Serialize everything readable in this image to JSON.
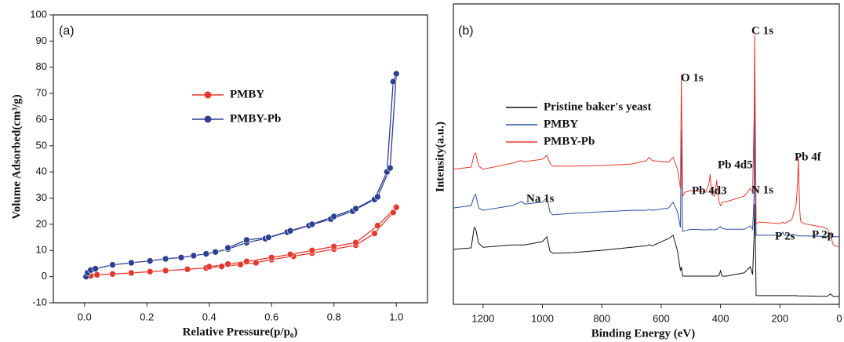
{
  "chart_data": [
    {
      "type": "line",
      "panel_label": "(a)",
      "markers": true,
      "xlabel": "Relative Pressure(p/p₀)",
      "ylabel": "Volume Adsorbed(cm³/g)",
      "xlim": [
        -0.1,
        1.1
      ],
      "ylim": [
        -10,
        100
      ],
      "xticks": [
        {
          "value": 0,
          "label": "0.0"
        },
        0.2,
        0.4,
        0.6,
        0.8,
        {
          "value": 1,
          "label": "1.0"
        }
      ],
      "yticks": [
        -10,
        0,
        10,
        20,
        30,
        40,
        50,
        60,
        70,
        80,
        90,
        100
      ],
      "series": [
        {
          "name": "PMBY",
          "color": "#e5392f",
          "x": [
            0.005,
            0.02,
            0.04,
            0.09,
            0.15,
            0.21,
            0.26,
            0.33,
            0.39,
            0.44,
            0.5,
            0.55,
            0.6,
            0.67,
            0.73,
            0.8,
            0.87,
            0.93,
            0.99,
            1.0,
            0.94,
            0.87,
            0.8,
            0.73,
            0.66,
            0.6,
            0.52,
            0.46,
            0.4
          ],
          "values": [
            0,
            0.3,
            0.7,
            1.0,
            1.4,
            1.9,
            2.3,
            2.8,
            3.3,
            3.9,
            4.6,
            5.3,
            6.5,
            7.8,
            9,
            10.5,
            12,
            16.5,
            24.5,
            26.5,
            19.5,
            13,
            11.5,
            10,
            8.5,
            7.3,
            5.8,
            4.8,
            3.8
          ]
        },
        {
          "name": "PMBY-Pb",
          "color": "#2d3f91",
          "x": [
            0.005,
            0.01,
            0.02,
            0.035,
            0.09,
            0.15,
            0.21,
            0.26,
            0.31,
            0.35,
            0.39,
            0.42,
            0.46,
            0.52,
            0.58,
            0.65,
            0.72,
            0.79,
            0.86,
            0.93,
            0.97,
            0.99,
            1.0,
            0.98,
            0.94,
            0.87,
            0.8,
            0.73,
            0.66,
            0.59,
            0.52,
            0.46
          ],
          "values": [
            0,
            1.5,
            2.5,
            3,
            4.5,
            5.3,
            6,
            6.8,
            7.3,
            8,
            8.7,
            9.4,
            10.5,
            13,
            14.5,
            17,
            19.5,
            22,
            25,
            29.5,
            40,
            74.5,
            77.5,
            41.5,
            30.5,
            26,
            23,
            20,
            17.5,
            15,
            14,
            11
          ]
        }
      ]
    },
    {
      "type": "line",
      "panel_label": "(b)",
      "markers": false,
      "xlabel": "Binding Energy (eV)",
      "ylabel": "Intensity(a.u.)",
      "xlim": [
        1300,
        0
      ],
      "ylim": [
        0,
        100
      ],
      "xticks": [
        1200,
        1000,
        800,
        600,
        400,
        200,
        0
      ],
      "x": [
        1300,
        1240,
        1230,
        1225,
        1215,
        1200,
        1100,
        1075,
        1070,
        1060,
        1000,
        985,
        975,
        965,
        900,
        800,
        700,
        650,
        640,
        630,
        575,
        560,
        545,
        535,
        532,
        528,
        520,
        500,
        450,
        440,
        435,
        430,
        420,
        413,
        405,
        400,
        395,
        380,
        320,
        300,
        292,
        287,
        285,
        283,
        280,
        270,
        200,
        190,
        185,
        160,
        145,
        140,
        138,
        136,
        133,
        130,
        120,
        50,
        40,
        30,
        20,
        0
      ],
      "series": [
        {
          "name": "Pristine baker's yeast",
          "color": "#111111",
          "values": [
            18.3,
            18.8,
            25.6,
            25.1,
            20.4,
            19.0,
            19.8,
            19.8,
            19.8,
            19.8,
            20.9,
            22.5,
            17.8,
            17.0,
            17.2,
            18.0,
            19.0,
            19.5,
            19.8,
            19.5,
            21.9,
            23.0,
            17.8,
            11.2,
            12.5,
            9.4,
            9.4,
            9.4,
            9.4,
            9.4,
            9.4,
            9.4,
            9.4,
            9.4,
            9.6,
            11.2,
            9.4,
            9.4,
            10.5,
            12.5,
            9.9,
            23.0,
            33.4,
            23.0,
            2.9,
            2.9,
            2.9,
            2.9,
            2.9,
            2.9,
            2.9,
            2.8,
            2.8,
            2.8,
            2.8,
            2.8,
            2.8,
            2.7,
            2.7,
            3.5,
            2.6,
            2.6
          ]
        },
        {
          "name": "PMBY",
          "color": "#2d4fa0",
          "values": [
            32.1,
            32.9,
            36.0,
            36.6,
            32.1,
            31.3,
            32.9,
            34.0,
            34.3,
            33.4,
            34.0,
            35.5,
            30.8,
            29.8,
            30.3,
            30.8,
            31.3,
            31.3,
            31.6,
            31.3,
            32.1,
            34.0,
            30.8,
            25.6,
            58.2,
            24.3,
            24.5,
            25.0,
            24.8,
            24.8,
            25.0,
            24.8,
            24.8,
            25.0,
            25.6,
            25.9,
            25.3,
            25.0,
            25.0,
            26.1,
            25.0,
            36.0,
            75.2,
            36.0,
            23.0,
            23.0,
            23.0,
            24.0,
            23.0,
            23.0,
            23.0,
            22.8,
            22.8,
            22.8,
            22.8,
            22.8,
            22.8,
            22.6,
            22.6,
            23.5,
            22.5,
            22.5
          ]
        },
        {
          "name": "PMBY-Pb",
          "color": "#e5392f",
          "values": [
            45.0,
            45.7,
            50.0,
            50.4,
            46.0,
            45.0,
            47.0,
            47.8,
            47.8,
            47.5,
            48.3,
            49.6,
            47.0,
            46.0,
            46.0,
            46.2,
            46.7,
            47.8,
            49.0,
            47.8,
            47.3,
            49.0,
            45.0,
            38.6,
            76.5,
            36.0,
            37.3,
            37.9,
            37.3,
            39.7,
            43.3,
            36.6,
            36.0,
            41.3,
            34.0,
            32.9,
            34.0,
            34.2,
            36.0,
            38.6,
            37.3,
            62.0,
            89.6,
            62.0,
            26.9,
            27.4,
            26.9,
            27.4,
            26.9,
            28.2,
            33.4,
            41.3,
            49.0,
            41.3,
            30.8,
            27.7,
            26.9,
            25.6,
            25.0,
            23.0,
            19.8,
            19.0
          ]
        }
      ],
      "annotations": [
        "O 1s",
        "C 1s",
        "Pb 4d3",
        "Pb 4d5",
        "N 1s",
        "Pb 4f",
        "Na 1s",
        "P 2s",
        "P 2p"
      ]
    }
  ]
}
